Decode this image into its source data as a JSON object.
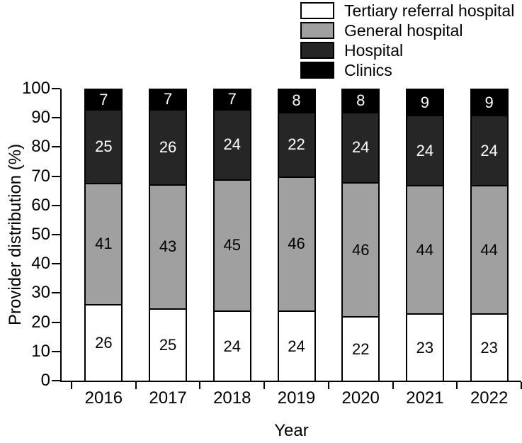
{
  "figure": {
    "background": "#ffffff",
    "axis_color": "#000000"
  },
  "chart_data": {
    "type": "bar",
    "stacked": true,
    "xlabel": "Year",
    "ylabel": "Provider distribution (%)",
    "ylim": [
      0,
      100
    ],
    "yticks": [
      0,
      10,
      20,
      30,
      40,
      50,
      60,
      70,
      80,
      90,
      100
    ],
    "grid": false,
    "legend_position": "top-right",
    "categories": [
      "2016",
      "2017",
      "2018",
      "2019",
      "2020",
      "2021",
      "2022"
    ],
    "series": [
      {
        "name": "Tertiary referral hospital",
        "color": "#ffffff",
        "label_color": "#000000",
        "values": [
          26,
          25,
          24,
          24,
          22,
          23,
          23
        ]
      },
      {
        "name": "General hospital",
        "color": "#a0a0a0",
        "label_color": "#000000",
        "values": [
          41,
          43,
          45,
          46,
          46,
          44,
          44
        ]
      },
      {
        "name": "Hospital",
        "color": "#262626",
        "label_color": "#ffffff",
        "values": [
          25,
          26,
          24,
          22,
          24,
          24,
          24
        ]
      },
      {
        "name": "Clinics",
        "color": "#000000",
        "label_color": "#ffffff",
        "values": [
          7,
          7,
          7,
          8,
          8,
          9,
          9
        ]
      }
    ]
  }
}
